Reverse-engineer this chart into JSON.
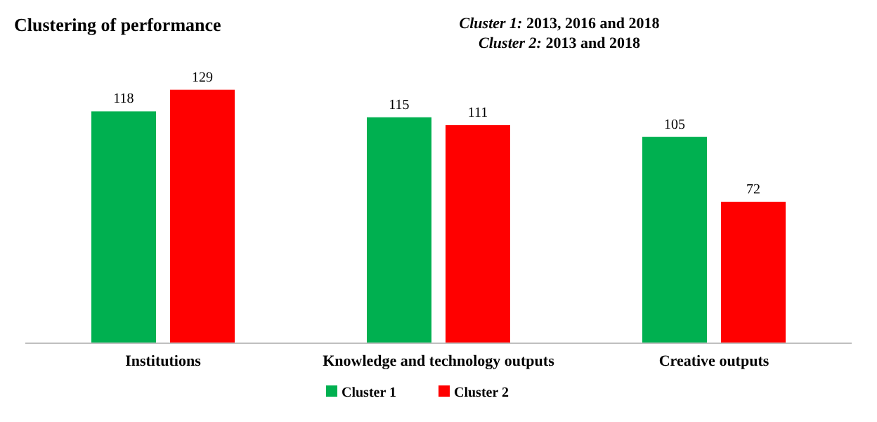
{
  "chart_data": {
    "type": "bar",
    "title": "Clustering of performance",
    "annotations": [
      "Cluster 1: 2013, 2016 and 2018",
      "Cluster 2: 2013 and 2018"
    ],
    "categories": [
      "Institutions",
      "Knowledge and technology outputs",
      "Creative outputs"
    ],
    "series": [
      {
        "name": "Cluster 1",
        "color": "#00b050",
        "values": [
          118,
          115,
          105
        ]
      },
      {
        "name": "Cluster 2",
        "color": "#ff0000",
        "values": [
          129,
          111,
          72
        ]
      }
    ],
    "data_labels": true,
    "legend": "bottom"
  }
}
